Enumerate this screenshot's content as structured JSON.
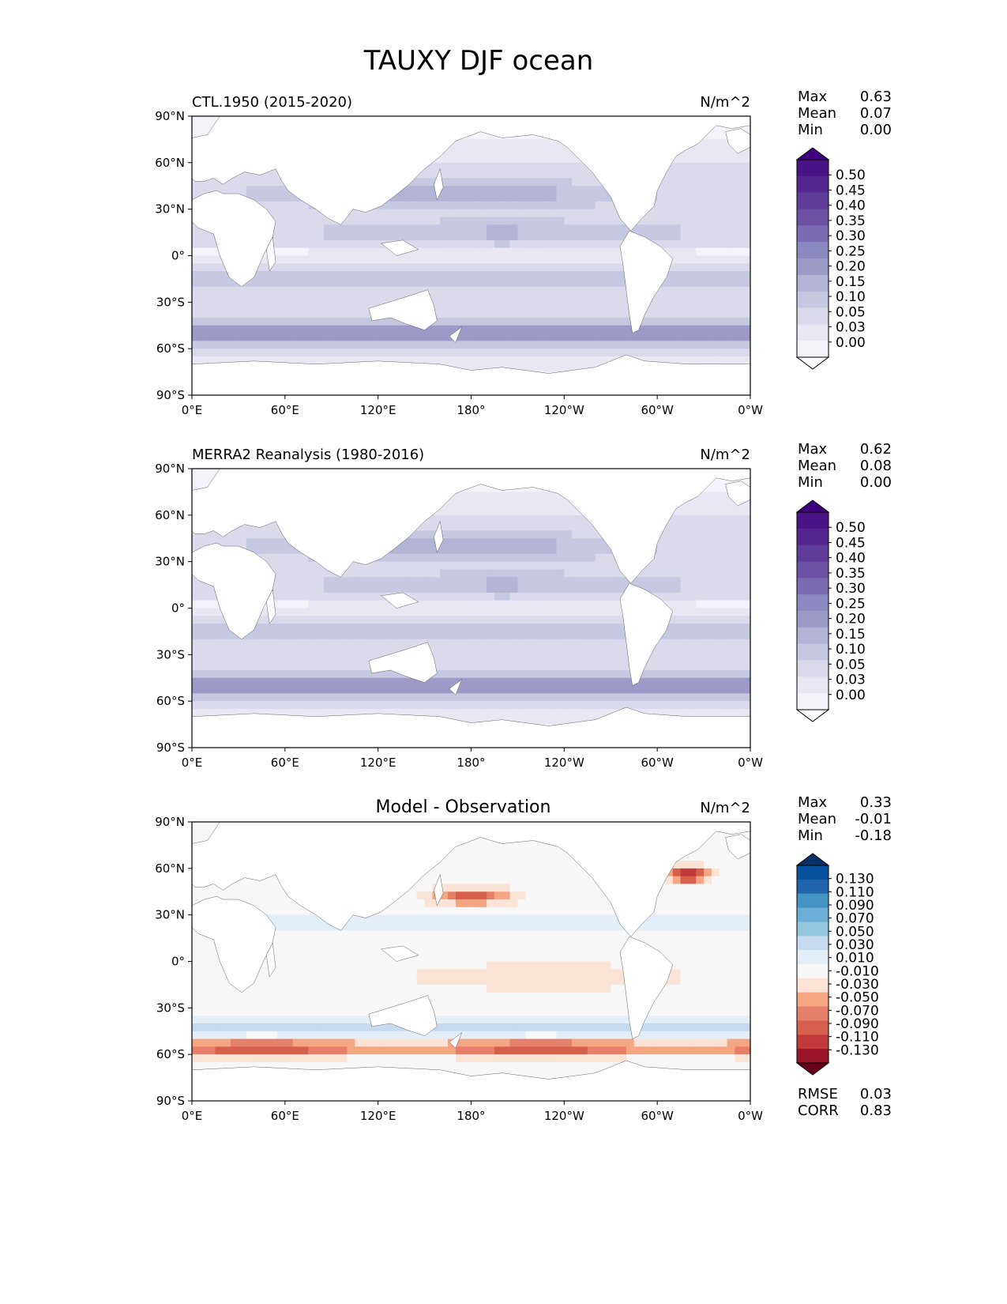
{
  "figure_title": "TAUXY DJF ocean",
  "chart_data": [
    {
      "type": "heatmap",
      "title": "CTL.1950 (2015-2020)",
      "units": "N/m^2",
      "xticks": [
        "0°E",
        "60°E",
        "120°E",
        "180°",
        "120°W",
        "60°W",
        "0°W"
      ],
      "yticks": [
        "90°N",
        "60°N",
        "30°N",
        "0°",
        "30°S",
        "60°S",
        "90°S"
      ],
      "stats": [
        {
          "label": "Max",
          "value": "0.63"
        },
        {
          "label": "Mean",
          "value": "0.07"
        },
        {
          "label": "Min",
          "value": "0.00"
        }
      ],
      "colorbar": {
        "labels": [
          "0.50",
          "0.45",
          "0.40",
          "0.35",
          "0.30",
          "0.25",
          "0.20",
          "0.15",
          "0.10",
          "0.05",
          "0.03",
          "0.00"
        ],
        "colors": [
          "#3f007d",
          "#4a1486",
          "#54278f",
          "#5e3c99",
          "#6a51a3",
          "#7b6bb2",
          "#8c88c0",
          "#9e9ac8",
          "#b3b3d6",
          "#c6c7e1",
          "#dadaeb",
          "#e8e7f2",
          "#f4f3f9",
          "#fcfbfd"
        ]
      },
      "field": "positive"
    },
    {
      "type": "heatmap",
      "title": "MERRA2 Reanalysis (1980-2016)",
      "units": "N/m^2",
      "xticks": [
        "0°E",
        "60°E",
        "120°E",
        "180°",
        "120°W",
        "60°W",
        "0°W"
      ],
      "yticks": [
        "90°N",
        "60°N",
        "30°N",
        "0°",
        "30°S",
        "60°S",
        "90°S"
      ],
      "stats": [
        {
          "label": "Max",
          "value": "0.62"
        },
        {
          "label": "Mean",
          "value": "0.08"
        },
        {
          "label": "Min",
          "value": "0.00"
        }
      ],
      "colorbar": {
        "labels": [
          "0.50",
          "0.45",
          "0.40",
          "0.35",
          "0.30",
          "0.25",
          "0.20",
          "0.15",
          "0.10",
          "0.05",
          "0.03",
          "0.00"
        ],
        "colors": [
          "#3f007d",
          "#4a1486",
          "#54278f",
          "#5e3c99",
          "#6a51a3",
          "#7b6bb2",
          "#8c88c0",
          "#9e9ac8",
          "#b3b3d6",
          "#c6c7e1",
          "#dadaeb",
          "#e8e7f2",
          "#f4f3f9",
          "#fcfbfd"
        ]
      },
      "field": "positive"
    },
    {
      "type": "heatmap",
      "title": "Model - Observation",
      "units": "N/m^2",
      "xticks": [
        "0°E",
        "60°E",
        "120°E",
        "180°",
        "120°W",
        "60°W",
        "0°W"
      ],
      "yticks": [
        "90°N",
        "60°N",
        "30°N",
        "0°",
        "30°S",
        "60°S",
        "90°S"
      ],
      "stats": [
        {
          "label": "Max",
          "value": "0.33"
        },
        {
          "label": "Mean",
          "value": "-0.01"
        },
        {
          "label": "Min",
          "value": "-0.18"
        }
      ],
      "colorbar": {
        "labels": [
          "0.130",
          "0.110",
          "0.090",
          "0.070",
          "0.050",
          "0.030",
          "0.010",
          "-0.010",
          "-0.030",
          "-0.050",
          "-0.070",
          "-0.090",
          "-0.110",
          "-0.130"
        ],
        "colors": [
          "#08306b",
          "#08519c",
          "#2166ac",
          "#4393c3",
          "#6baed6",
          "#92c5de",
          "#c6dbef",
          "#e3eef6",
          "#f7f7f7",
          "#fbe3d6",
          "#f4a582",
          "#e7806a",
          "#d6604d",
          "#c03a3c",
          "#9b1529",
          "#67001f"
        ]
      },
      "field": "diff",
      "extra_stats": [
        {
          "label": "RMSE",
          "value": "0.03"
        },
        {
          "label": "CORR",
          "value": "0.83"
        }
      ]
    }
  ]
}
